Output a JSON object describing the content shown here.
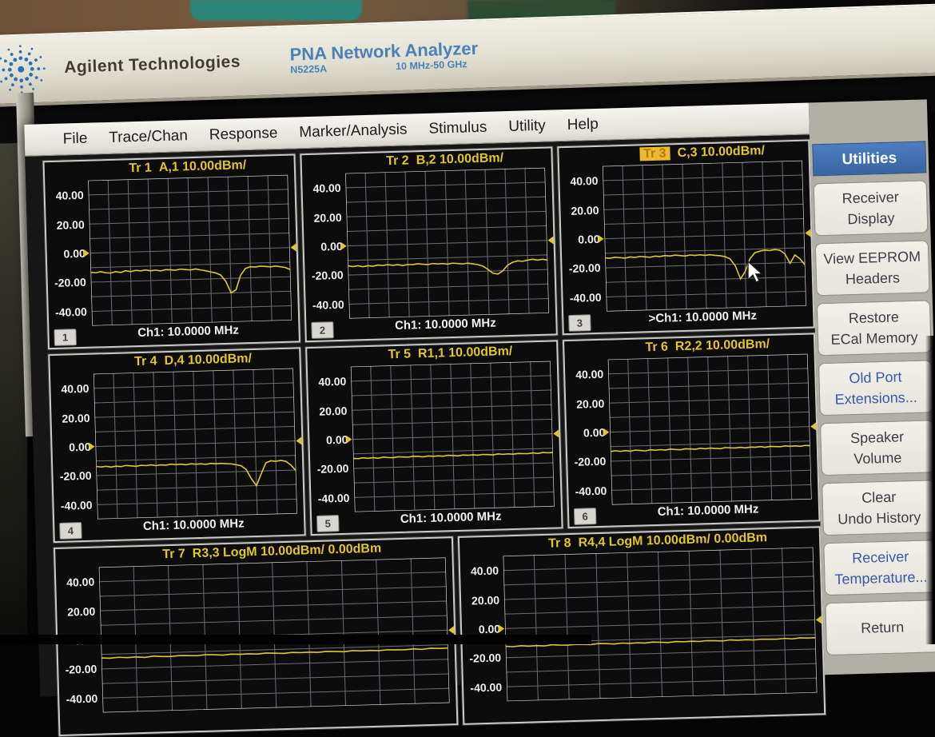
{
  "device": {
    "brand": "Agilent Technologies",
    "product": "PNA Network Analyzer",
    "model": "N5225A",
    "freq_range": "10 MHz-50 GHz"
  },
  "menu": {
    "items": [
      "File",
      "Trace/Chan",
      "Response",
      "Marker/Analysis",
      "Stimulus",
      "Utility",
      "Help"
    ]
  },
  "sidebar": {
    "header": "Utilities",
    "buttons": [
      {
        "lines": [
          "Receiver",
          "Display"
        ],
        "accent": false
      },
      {
        "lines": [
          "View EEPROM",
          "Headers"
        ],
        "accent": false
      },
      {
        "lines": [
          "Restore",
          "ECal Memory"
        ],
        "accent": false
      },
      {
        "lines": [
          "Old Port",
          "Extensions..."
        ],
        "accent": true
      },
      {
        "lines": [
          "Speaker",
          "Volume"
        ],
        "accent": false
      },
      {
        "lines": [
          "Clear",
          "Undo History"
        ],
        "accent": false
      },
      {
        "lines": [
          "Receiver",
          "Temperature..."
        ],
        "accent": true
      },
      {
        "lines": [
          "Return"
        ],
        "accent": false
      }
    ]
  },
  "colors": {
    "trace": "#ddc838",
    "title_yellow": "#e2c627",
    "active_trace_bg": "#edb92e",
    "grid_line": "rgba(185,190,205,0.55)",
    "grid_frame": "rgba(235,235,240,0.9)",
    "sidebar_blue": "#3d6db2",
    "accent_text_blue": "#3a57a8"
  },
  "chart_data": [
    {
      "type": "line",
      "trace": "Tr 1",
      "measurement": "A,1 10.00dBm/",
      "title": "Tr 1  A,1 10.00dBm/",
      "active": false,
      "ylim": [
        -50,
        50
      ],
      "yticks": [
        40,
        20,
        0,
        -20,
        -40
      ],
      "ref_level_db": 0,
      "channel": "Ch1:  10.0000 MHz",
      "chan_num": "1",
      "x_step_pct": 2.5,
      "y_db": [
        -13.2,
        -13.6,
        -12.9,
        -13.8,
        -14.1,
        -13.2,
        -13.9,
        -12.8,
        -13.5,
        -12.7,
        -13.1,
        -12.6,
        -13.3,
        -12.9,
        -13.6,
        -12.8,
        -13.0,
        -13.4,
        -12.7,
        -13.1,
        -13.5,
        -12.9,
        -13.7,
        -14.3,
        -15.2,
        -16.0,
        -17.5,
        -22.0,
        -30.0,
        -28.0,
        -18.0,
        -13.5,
        -12.4,
        -12.7,
        -12.2,
        -12.5,
        -12.9,
        -12.4,
        -13.0,
        -13.6,
        -15.2
      ]
    },
    {
      "type": "line",
      "trace": "Tr 2",
      "measurement": "B,2 10.00dBm/",
      "title": "Tr 2  B,2 10.00dBm/",
      "active": false,
      "ylim": [
        -50,
        50
      ],
      "yticks": [
        40,
        20,
        0,
        -20,
        -40
      ],
      "ref_level_db": 0,
      "channel": "Ch1:  10.0000 MHz",
      "chan_num": "2",
      "x_step_pct": 2.5,
      "y_db": [
        -13.6,
        -14.3,
        -13.8,
        -14.6,
        -14.0,
        -14.4,
        -13.7,
        -14.1,
        -13.6,
        -14.2,
        -13.8,
        -14.5,
        -13.9,
        -14.1,
        -13.6,
        -14.0,
        -14.3,
        -13.7,
        -14.1,
        -13.9,
        -14.4,
        -13.8,
        -14.2,
        -14.6,
        -14.1,
        -14.7,
        -15.3,
        -16.4,
        -18.8,
        -21.6,
        -22.2,
        -20.0,
        -16.2,
        -14.4,
        -13.5,
        -13.9,
        -13.2,
        -12.7,
        -13.4,
        -12.9,
        -13.6
      ]
    },
    {
      "type": "line",
      "trace": "Tr 3",
      "measurement": "C,3 10.00dBm/",
      "title": "Tr 3  C,3 10.00dBm/",
      "active": true,
      "ylim": [
        -50,
        50
      ],
      "yticks": [
        40,
        20,
        0,
        -20,
        -40
      ],
      "ref_level_db": 0,
      "channel": ">Ch1:  10.0000 MHz",
      "chan_num": "3",
      "x_step_pct": 2.5,
      "y_db": [
        -13.1,
        -13.5,
        -12.9,
        -13.3,
        -13.7,
        -13.0,
        -13.4,
        -12.8,
        -13.2,
        -13.6,
        -12.9,
        -13.3,
        -12.7,
        -13.1,
        -12.6,
        -13.0,
        -13.4,
        -12.8,
        -13.2,
        -12.9,
        -13.3,
        -13.0,
        -13.5,
        -13.9,
        -14.6,
        -16.2,
        -21.0,
        -30.2,
        -25.0,
        -16.5,
        -12.5,
        -11.5,
        -10.9,
        -11.3,
        -10.7,
        -11.2,
        -13.8,
        -20.5,
        -14.8,
        -17.5,
        -22.0
      ]
    },
    {
      "type": "line",
      "trace": "Tr 4",
      "measurement": "D,4 10.00dBm/",
      "title": "Tr 4  D,4 10.00dBm/",
      "active": false,
      "ylim": [
        -50,
        50
      ],
      "yticks": [
        40,
        20,
        0,
        -20,
        -40
      ],
      "ref_level_db": 0,
      "channel": "Ch1:  10.0000 MHz",
      "chan_num": "4",
      "x_step_pct": 2.5,
      "y_db": [
        -13.7,
        -14.2,
        -13.8,
        -14.4,
        -13.9,
        -14.3,
        -13.6,
        -14.0,
        -14.4,
        -13.8,
        -14.1,
        -13.7,
        -14.3,
        -13.9,
        -14.2,
        -13.6,
        -14.0,
        -13.8,
        -14.3,
        -13.7,
        -14.1,
        -13.9,
        -14.4,
        -13.8,
        -14.2,
        -14.0,
        -14.3,
        -14.5,
        -15.2,
        -16.0,
        -18.5,
        -25.0,
        -30.0,
        -22.0,
        -14.5,
        -13.2,
        -13.6,
        -13.1,
        -13.8,
        -16.5,
        -20.5
      ]
    },
    {
      "type": "line",
      "trace": "Tr 5",
      "measurement": "R1,1 10.00dBm/",
      "title": "Tr 5  R1,1 10.00dBm/",
      "active": false,
      "ylim": [
        -50,
        50
      ],
      "yticks": [
        40,
        20,
        0,
        -20,
        -40
      ],
      "ref_level_db": 0,
      "channel": "Ch1:  10.0000 MHz",
      "chan_num": "5",
      "x_step_pct": 2.5,
      "y_db": [
        -13.1,
        -13.4,
        -12.9,
        -13.3,
        -13.0,
        -13.5,
        -12.8,
        -13.2,
        -13.4,
        -12.9,
        -13.1,
        -13.3,
        -12.8,
        -13.0,
        -13.4,
        -12.9,
        -13.2,
        -13.0,
        -13.3,
        -12.8,
        -13.1,
        -13.4,
        -12.9,
        -13.2,
        -13.0,
        -13.3,
        -12.9,
        -13.1,
        -13.4,
        -12.8,
        -13.2,
        -13.0,
        -13.3,
        -12.9,
        -13.1,
        -13.2,
        -12.8,
        -13.3,
        -12.7,
        -13.0,
        -12.9
      ]
    },
    {
      "type": "line",
      "trace": "Tr 6",
      "measurement": "R2,2 10.00dBm/",
      "title": "Tr 6  R2,2 10.00dBm/",
      "active": false,
      "ylim": [
        -50,
        50
      ],
      "yticks": [
        40,
        20,
        0,
        -20,
        -40
      ],
      "ref_level_db": 0,
      "channel": "Ch1:  10.0000 MHz",
      "chan_num": "6",
      "x_step_pct": 2.5,
      "y_db": [
        -13.3,
        -12.9,
        -13.4,
        -13.0,
        -13.5,
        -12.8,
        -13.2,
        -13.6,
        -12.9,
        -13.3,
        -13.0,
        -13.4,
        -12.8,
        -13.2,
        -13.5,
        -12.9,
        -13.1,
        -13.4,
        -12.8,
        -13.3,
        -12.9,
        -13.2,
        -13.5,
        -12.8,
        -13.1,
        -13.3,
        -12.9,
        -13.4,
        -13.0,
        -13.2,
        -12.8,
        -13.4,
        -12.9,
        -13.1,
        -13.3,
        -12.8,
        -13.2,
        -13.0,
        -13.4,
        -12.9,
        -13.1
      ]
    },
    {
      "type": "line",
      "trace": "Tr 7",
      "measurement": "R3,3 LogM 10.00dBm/ 0.00dBm",
      "title": "Tr 7  R3,3 LogM 10.00dBm/ 0.00dBm",
      "active": false,
      "ylim": [
        -50,
        50
      ],
      "yticks": [
        40,
        20,
        0,
        -20,
        -40
      ],
      "ref_level_db": 0,
      "channel": "",
      "chan_num": "",
      "x_step_pct": 2.5,
      "y_db": [
        -12.4,
        -12.8,
        -12.3,
        -12.7,
        -12.4,
        -12.9,
        -12.2,
        -12.6,
        -12.8,
        -12.3,
        -12.5,
        -12.7,
        -12.2,
        -12.4,
        -12.8,
        -12.3,
        -12.6,
        -12.4,
        -12.7,
        -12.2,
        -12.5,
        -12.8,
        -12.3,
        -12.6,
        -12.4,
        -12.7,
        -12.3,
        -12.5,
        -12.8,
        -12.2,
        -12.6,
        -12.4,
        -12.7,
        -12.3,
        -12.5,
        -12.6,
        -12.2,
        -12.7,
        -12.1,
        -12.4,
        -12.3
      ]
    },
    {
      "type": "line",
      "trace": "Tr 8",
      "measurement": "R4,4 LogM 10.00dBm/ 0.00dBm",
      "title": "Tr 8  R4,4 LogM 10.00dBm/ 0.00dBm",
      "active": false,
      "ylim": [
        -50,
        50
      ],
      "yticks": [
        40,
        20,
        0,
        -20,
        -40
      ],
      "ref_level_db": 0,
      "channel": "",
      "chan_num": "",
      "x_step_pct": 2.5,
      "y_db": [
        -12.2,
        -12.6,
        -12.1,
        -12.5,
        -12.3,
        -12.7,
        -12.0,
        -12.4,
        -12.6,
        -12.2,
        -12.4,
        -12.6,
        -12.1,
        -12.3,
        -12.7,
        -12.2,
        -12.5,
        -12.3,
        -12.6,
        -12.1,
        -12.4,
        -12.7,
        -12.2,
        -12.5,
        -12.3,
        -12.6,
        -12.2,
        -12.4,
        -12.7,
        -12.1,
        -12.5,
        -12.3,
        -12.6,
        -12.2,
        -12.4,
        -12.5,
        -12.1,
        -12.6,
        -12.0,
        -12.3,
        -12.2
      ]
    }
  ]
}
